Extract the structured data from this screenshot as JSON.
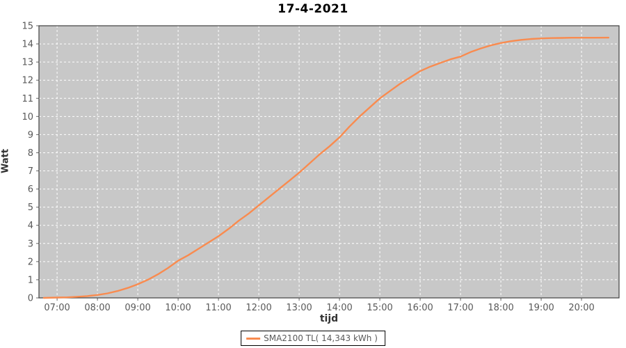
{
  "colors": {
    "title": "#000000",
    "axis_label": "#333333",
    "tick_label": "#595959",
    "tick_mark": "#666666",
    "plot_bg": "#c8c8c8",
    "grid": "#ffffff",
    "border": "#3f3f3f",
    "legend_border": "#000000",
    "series": "#f98b4f"
  },
  "legend": {
    "position": "bottom"
  },
  "chart_data": {
    "type": "line",
    "title": "17-4-2021",
    "xlabel": "tijd",
    "ylabel": "Watt",
    "xlim": [
      6.55,
      20.93
    ],
    "ylim": [
      0,
      15
    ],
    "grid": true,
    "legend_position": "bottom",
    "x_tick_values": [
      7,
      8,
      9,
      10,
      11,
      12,
      13,
      14,
      15,
      16,
      17,
      18,
      19,
      20
    ],
    "x_tick_labels": [
      "07:00",
      "08:00",
      "09:00",
      "10:00",
      "11:00",
      "12:00",
      "13:00",
      "14:00",
      "15:00",
      "16:00",
      "17:00",
      "18:00",
      "19:00",
      "20:00"
    ],
    "y_tick_values": [
      0,
      1,
      2,
      3,
      4,
      5,
      6,
      7,
      8,
      9,
      10,
      11,
      12,
      13,
      14,
      15
    ],
    "series": [
      {
        "name": "SMA2100 TL( 14,343 kWh )",
        "color": "#f98b4f",
        "total_kwh_label": "14,343",
        "x": [
          6.67,
          7.0,
          7.25,
          7.5,
          7.75,
          8.0,
          8.25,
          8.5,
          8.75,
          9.0,
          9.25,
          9.5,
          9.75,
          10.0,
          10.25,
          10.5,
          10.75,
          11.0,
          11.25,
          11.5,
          11.75,
          12.0,
          12.25,
          12.5,
          12.75,
          13.0,
          13.25,
          13.5,
          13.75,
          14.0,
          14.25,
          14.5,
          14.75,
          15.0,
          15.25,
          15.5,
          15.75,
          16.0,
          16.25,
          16.5,
          16.75,
          17.0,
          17.25,
          17.5,
          17.75,
          18.0,
          18.25,
          18.5,
          18.75,
          19.0,
          19.25,
          19.5,
          19.75,
          20.0,
          20.33,
          20.67
        ],
        "y": [
          0.0,
          0.02,
          0.03,
          0.06,
          0.1,
          0.16,
          0.25,
          0.38,
          0.55,
          0.75,
          1.0,
          1.3,
          1.65,
          2.05,
          2.35,
          2.7,
          3.05,
          3.4,
          3.8,
          4.25,
          4.65,
          5.1,
          5.55,
          6.0,
          6.45,
          6.9,
          7.4,
          7.9,
          8.35,
          8.85,
          9.45,
          10.0,
          10.5,
          11.0,
          11.4,
          11.8,
          12.15,
          12.5,
          12.75,
          12.95,
          13.15,
          13.3,
          13.55,
          13.75,
          13.92,
          14.05,
          14.15,
          14.22,
          14.27,
          14.3,
          14.32,
          14.33,
          14.34,
          14.34,
          14.34,
          14.343
        ]
      }
    ]
  }
}
